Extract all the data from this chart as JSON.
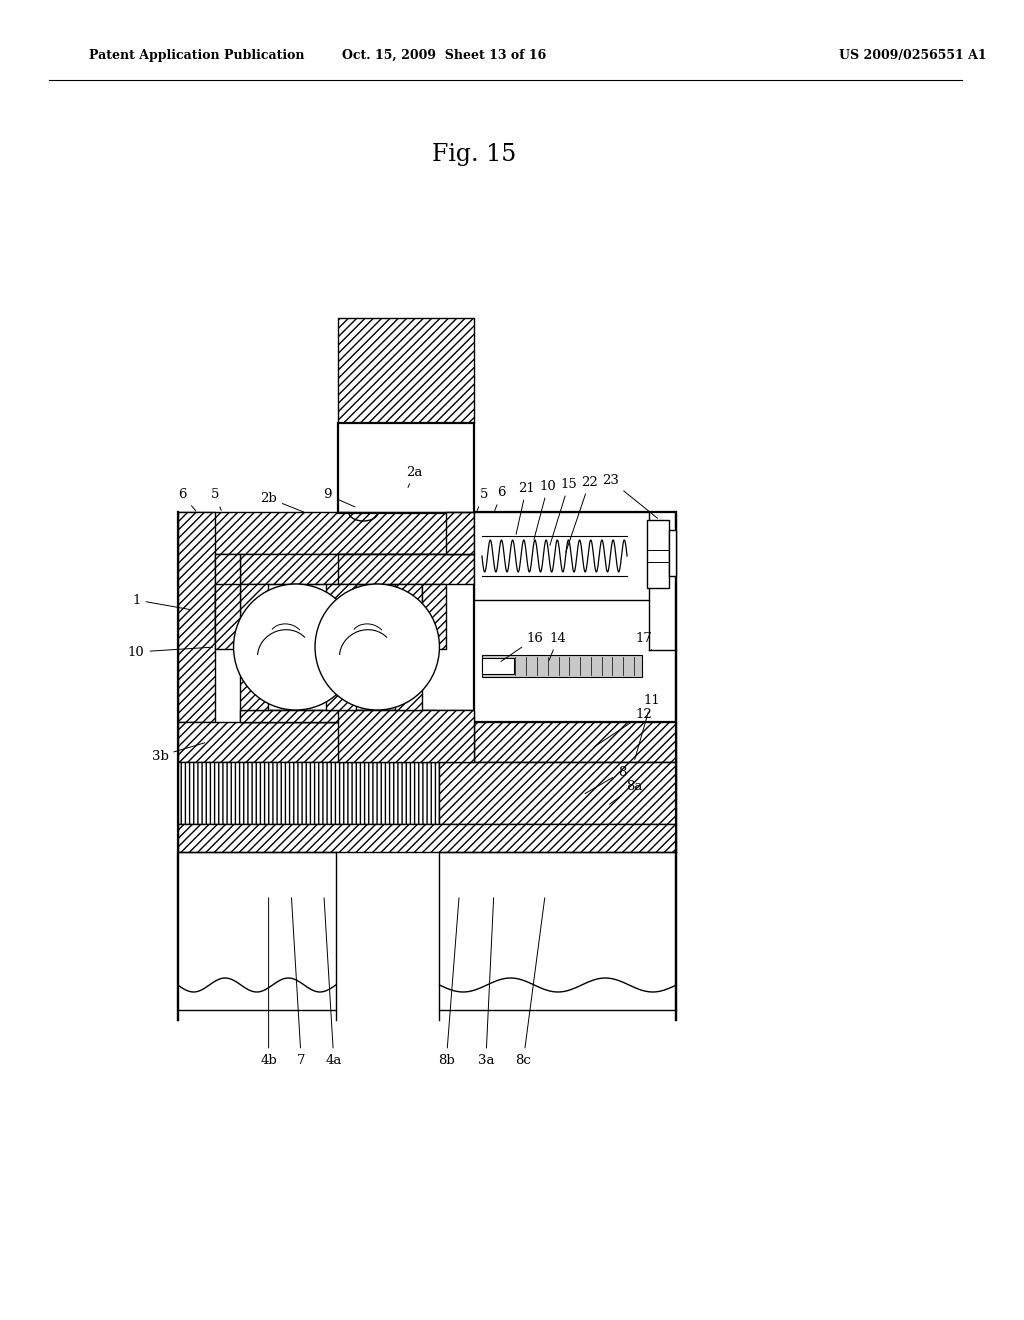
{
  "header_left": "Patent Application Publication",
  "header_mid": "Oct. 15, 2009  Sheet 13 of 16",
  "header_right": "US 2009/0256551 A1",
  "fig_title": "Fig. 15",
  "bg": "#ffffff",
  "lc": "#000000",
  "fw": 10.24,
  "fh": 13.2,
  "dpi": 100
}
